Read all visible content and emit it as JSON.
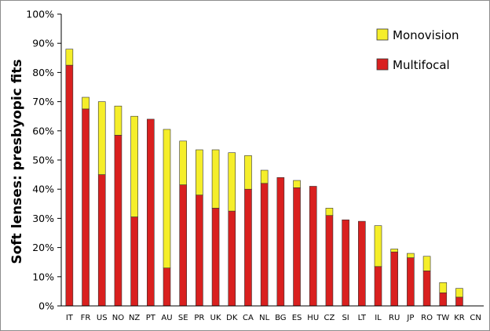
{
  "chart_data": {
    "type": "bar",
    "stacked": true,
    "title": "",
    "xlabel": "",
    "ylabel": "Soft lenses: presbyopic fits",
    "ylim": [
      0,
      100
    ],
    "y_ticks": [
      "0%",
      "10%",
      "20%",
      "30%",
      "40%",
      "50%",
      "60%",
      "70%",
      "80%",
      "90%",
      "100%"
    ],
    "grid": false,
    "legend_position": "top-right",
    "categories": [
      "IT",
      "FR",
      "US",
      "NO",
      "NZ",
      "PT",
      "AU",
      "SE",
      "PR",
      "UK",
      "DK",
      "CA",
      "NL",
      "BG",
      "ES",
      "HU",
      "CZ",
      "SI",
      "LT",
      "IL",
      "RU",
      "JP",
      "RO",
      "TW",
      "KR",
      "CN"
    ],
    "series": [
      {
        "name": "Multifocal",
        "color": "#d9201f",
        "values": [
          82.5,
          67.5,
          45,
          58.5,
          30.5,
          64,
          13,
          41.5,
          38,
          33.5,
          32.5,
          40,
          42,
          44,
          40.5,
          41,
          31,
          29.5,
          29,
          13.5,
          18.5,
          16.5,
          12,
          4.5,
          3,
          0
        ]
      },
      {
        "name": "Monovision",
        "color": "#f5ee2a",
        "values": [
          5.5,
          4,
          25,
          10,
          34.5,
          0,
          47.5,
          15,
          15.5,
          20,
          20,
          11.5,
          4.5,
          0,
          2.5,
          0,
          2.5,
          0,
          0,
          14,
          1,
          1.5,
          5,
          3.5,
          3,
          0
        ]
      }
    ]
  }
}
